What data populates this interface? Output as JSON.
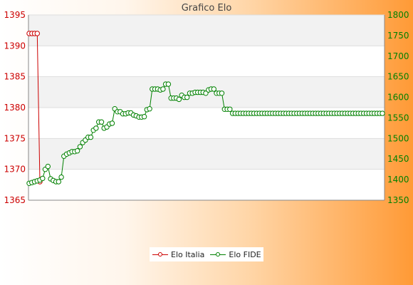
{
  "chart_data": {
    "type": "line",
    "title": "Grafico Elo",
    "grid": true,
    "legend_position": "bottom-center",
    "y_left": {
      "range": [
        1365,
        1395
      ],
      "ticks": [
        "1365",
        "1370",
        "1375",
        "1380",
        "1385",
        "1390",
        "1395"
      ],
      "color": "#cc0000"
    },
    "y_right": {
      "range": [
        1350,
        1800
      ],
      "ticks": [
        "1350",
        "1400",
        "1450",
        "1500",
        "1550",
        "1600",
        "1650",
        "1700",
        "1750",
        "1800"
      ],
      "color": "#008000"
    },
    "series": [
      {
        "name": "Elo Italia",
        "axis": "left",
        "color": "#cc0000",
        "values": [
          1392,
          1392,
          1392,
          1392,
          1368
        ]
      },
      {
        "name": "Elo FIDE",
        "axis": "right",
        "color": "#008000",
        "values": [
          1391,
          1393,
          1395,
          1397,
          1399,
          1403,
          1425,
          1432,
          1402,
          1398,
          1395,
          1395,
          1406,
          1457,
          1462,
          1465,
          1468,
          1468,
          1470,
          1480,
          1490,
          1496,
          1503,
          1503,
          1520,
          1525,
          1540,
          1540,
          1525,
          1528,
          1535,
          1537,
          1572,
          1565,
          1565,
          1560,
          1560,
          1562,
          1562,
          1557,
          1555,
          1552,
          1552,
          1553,
          1570,
          1572,
          1620,
          1620,
          1620,
          1618,
          1620,
          1632,
          1632,
          1598,
          1598,
          1598,
          1595,
          1605,
          1600,
          1600,
          1610,
          1610,
          1612,
          1612,
          1612,
          1612,
          1610,
          1618,
          1620,
          1620,
          1610,
          1610,
          1610,
          1571,
          1571,
          1571,
          1561,
          1561,
          1561,
          1561,
          1561,
          1561,
          1561,
          1561,
          1561,
          1561,
          1561,
          1561,
          1561,
          1561,
          1561,
          1561,
          1561,
          1561,
          1561,
          1561,
          1561,
          1561,
          1561,
          1561,
          1561,
          1561,
          1561,
          1561,
          1561,
          1561,
          1561,
          1561,
          1561,
          1561,
          1561,
          1561,
          1561,
          1561,
          1561,
          1561,
          1561,
          1561,
          1561,
          1561,
          1561,
          1561,
          1561,
          1561,
          1561,
          1561,
          1561,
          1561,
          1561,
          1561,
          1561,
          1561,
          1561
        ]
      }
    ]
  }
}
